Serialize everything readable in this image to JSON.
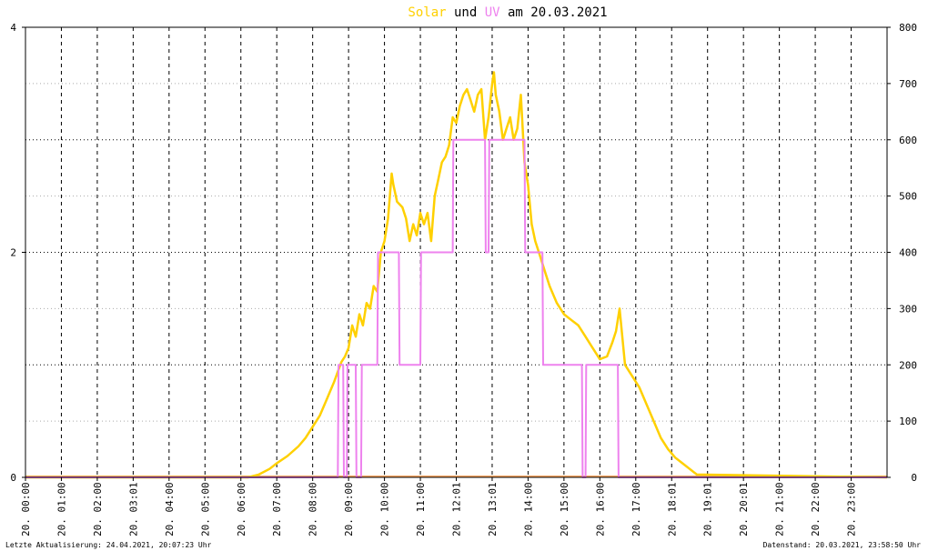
{
  "title": {
    "part1": "Solar",
    "part2": " und ",
    "part3": "UV",
    "part4": " am 20.03.2021"
  },
  "colors": {
    "solar": "#ffd000",
    "uv": "#ee82ee",
    "baseline": "#f4a460",
    "background": "#ffffff",
    "grid": "#000000"
  },
  "footer": {
    "left": "Letzte Aktualisierung: 24.04.2021, 20:07:23 Uhr",
    "right": "Datenstand: 20.03.2021, 23:58:50 Uhr"
  },
  "chart_data": {
    "type": "line",
    "title": "Solar und UV am 20.03.2021",
    "xlim": [
      0,
      24
    ],
    "x_tick_labels": [
      "20. 00:00",
      "20. 01:00",
      "20. 02:00",
      "20. 03:01",
      "20. 04:00",
      "20. 05:00",
      "20. 06:00",
      "20. 07:00",
      "20. 08:00",
      "20. 09:00",
      "20. 10:00",
      "20. 11:00",
      "20. 12:01",
      "20. 13:01",
      "20. 14:00",
      "20. 15:00",
      "20. 16:00",
      "20. 17:00",
      "20. 18:01",
      "20. 19:01",
      "20. 20:01",
      "20. 21:00",
      "20. 22:00",
      "20. 23:00"
    ],
    "y_left": {
      "range": [
        0,
        4
      ],
      "ticks": [
        "0",
        "2",
        "4"
      ]
    },
    "y_right": {
      "range": [
        0,
        800
      ],
      "ticks": [
        "0",
        "100",
        "200",
        "300",
        "400",
        "500",
        "600",
        "700",
        "800"
      ]
    },
    "grid": true,
    "series": [
      {
        "name": "Solar",
        "axis": "right",
        "x": [
          0,
          6.2,
          6.5,
          6.8,
          7.0,
          7.3,
          7.6,
          7.8,
          8.0,
          8.2,
          8.4,
          8.6,
          8.8,
          8.9,
          9.0,
          9.1,
          9.2,
          9.3,
          9.4,
          9.5,
          9.6,
          9.7,
          9.8,
          9.9,
          10.0,
          10.1,
          10.2,
          10.25,
          10.35,
          10.5,
          10.6,
          10.7,
          10.8,
          10.9,
          11.0,
          11.1,
          11.2,
          11.3,
          11.4,
          11.5,
          11.6,
          11.7,
          11.8,
          11.9,
          12.0,
          12.1,
          12.2,
          12.3,
          12.4,
          12.5,
          12.6,
          12.7,
          12.8,
          12.9,
          13.0,
          13.05,
          13.1,
          13.2,
          13.3,
          13.4,
          13.5,
          13.6,
          13.7,
          13.8,
          13.9,
          14.0,
          14.1,
          14.2,
          14.3,
          14.4,
          14.5,
          14.6,
          14.8,
          15.0,
          15.2,
          15.4,
          15.6,
          15.8,
          16.0,
          16.2,
          16.35,
          16.45,
          16.55,
          16.7,
          16.9,
          17.1,
          17.3,
          17.5,
          17.7,
          17.9,
          18.1,
          18.3,
          18.5,
          18.7,
          24
        ],
        "y": [
          0,
          0,
          5,
          15,
          25,
          38,
          55,
          70,
          90,
          110,
          140,
          170,
          205,
          215,
          230,
          270,
          250,
          290,
          270,
          310,
          300,
          340,
          330,
          400,
          420,
          460,
          540,
          520,
          490,
          480,
          460,
          420,
          450,
          430,
          470,
          450,
          470,
          420,
          500,
          530,
          560,
          570,
          590,
          640,
          630,
          660,
          680,
          690,
          670,
          650,
          680,
          690,
          600,
          640,
          700,
          720,
          680,
          650,
          600,
          620,
          640,
          600,
          620,
          680,
          560,
          520,
          450,
          420,
          400,
          380,
          360,
          340,
          310,
          290,
          280,
          270,
          250,
          230,
          210,
          215,
          240,
          260,
          300,
          200,
          180,
          160,
          130,
          100,
          70,
          50,
          35,
          25,
          15,
          5,
          0
        ]
      },
      {
        "name": "UV",
        "axis": "left",
        "x": [
          0,
          8.7,
          8.72,
          8.85,
          8.87,
          8.95,
          8.97,
          9.2,
          9.22,
          9.35,
          9.37,
          9.8,
          9.82,
          10.4,
          10.42,
          11.0,
          11.02,
          11.1,
          11.12,
          11.9,
          11.92,
          12.0,
          12.02,
          12.8,
          12.82,
          12.9,
          12.92,
          13.9,
          13.92,
          14.4,
          14.42,
          15.5,
          15.52,
          15.6,
          15.62,
          15.85,
          15.87,
          16.5,
          16.52,
          16.7,
          16.72,
          24
        ],
        "y": [
          0,
          0,
          1,
          1,
          0,
          0,
          1,
          1,
          0,
          0,
          1,
          1,
          2,
          2,
          1,
          1,
          2,
          2,
          2,
          2,
          3,
          3,
          3,
          3,
          2,
          2,
          3,
          3,
          2,
          2,
          1,
          1,
          0,
          0,
          1,
          1,
          1,
          1,
          0,
          0,
          0,
          0
        ]
      }
    ]
  }
}
